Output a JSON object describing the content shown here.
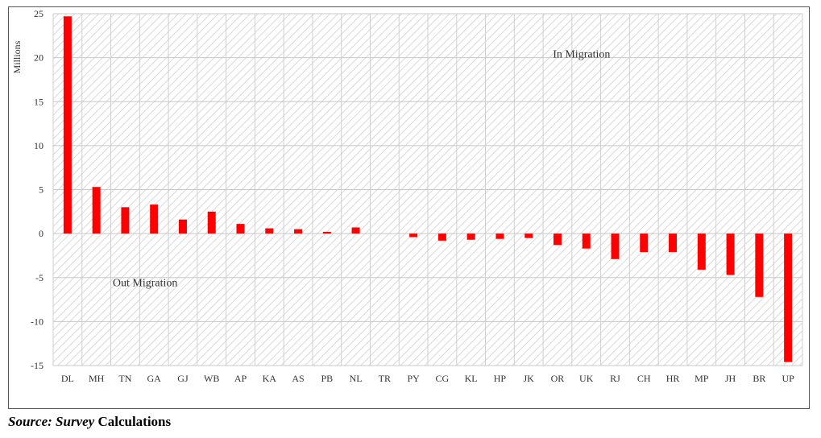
{
  "chart_data": {
    "type": "bar",
    "ylabel": "Millions",
    "ylim": [
      -15,
      25
    ],
    "yticks": [
      25,
      20,
      15,
      10,
      5,
      0,
      -5,
      -10,
      -15
    ],
    "grid": true,
    "bar_color": "#ff0000",
    "categories": [
      "DL",
      "MH",
      "TN",
      "GA",
      "GJ",
      "WB",
      "AP",
      "KA",
      "AS",
      "PB",
      "NL",
      "TR",
      "PY",
      "CG",
      "KL",
      "HP",
      "JK",
      "OR",
      "UK",
      "RJ",
      "CH",
      "HR",
      "MP",
      "JH",
      "BR",
      "UP"
    ],
    "values": [
      24.7,
      5.3,
      3.0,
      3.3,
      1.6,
      2.5,
      1.1,
      0.6,
      0.5,
      0.2,
      0.7,
      0.0,
      -0.4,
      -0.8,
      -0.7,
      -0.6,
      -0.5,
      -1.3,
      -1.7,
      -2.9,
      -2.1,
      -2.1,
      -4.1,
      -4.7,
      -7.2,
      -14.6
    ],
    "annotations": [
      {
        "text": "In Migration",
        "x_category": "JK",
        "y": 20
      },
      {
        "text": "Out Migration",
        "x_category": "DL",
        "y": -6
      }
    ]
  },
  "source": {
    "label": "Source:",
    "emphasis": "Survey",
    "rest": "Calculations"
  }
}
